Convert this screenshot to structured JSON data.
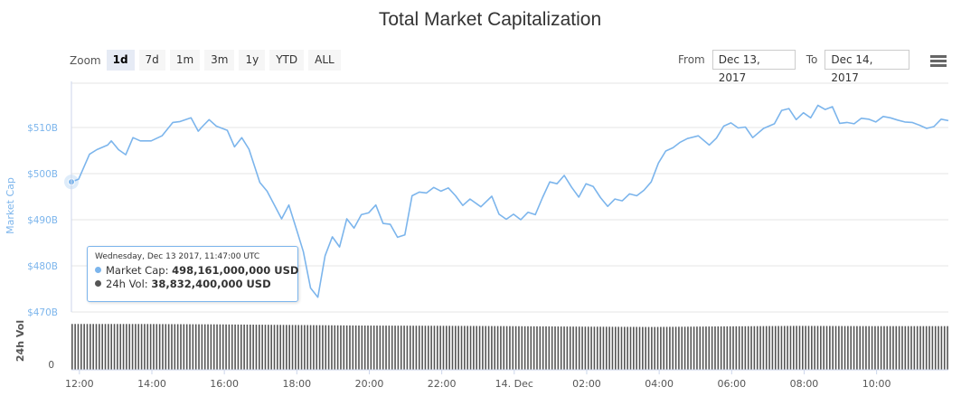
{
  "title": "Total Market Capitalization",
  "toolbar": {
    "zoom_label": "Zoom",
    "zoom_buttons": [
      "1d",
      "7d",
      "1m",
      "3m",
      "1y",
      "YTD",
      "ALL"
    ],
    "active_zoom": "1d",
    "from_label": "From",
    "from_value": "Dec 13, 2017",
    "to_label": "To",
    "to_value": "Dec 14, 2017",
    "menu_icon": "hamburger-menu-icon"
  },
  "colors": {
    "market_cap": "#7cb5ec",
    "volume": "#555555",
    "grid": "#e6e6e6"
  },
  "tooltip": {
    "date": "Wednesday, Dec 13 2017, 11:47:00 UTC",
    "market_cap_label": "Market Cap:",
    "market_cap_value": "498,161,000,000 USD",
    "volume_label": "24h Vol:",
    "volume_value": "38,832,400,000 USD"
  },
  "chart_data": {
    "type": "line",
    "x_unit": "hours since Dec 13 11:47 UTC",
    "x_ticks": [
      {
        "x": 0.22,
        "label": "12:00"
      },
      {
        "x": 2.22,
        "label": "14:00"
      },
      {
        "x": 4.22,
        "label": "16:00"
      },
      {
        "x": 6.22,
        "label": "18:00"
      },
      {
        "x": 8.22,
        "label": "20:00"
      },
      {
        "x": 10.22,
        "label": "22:00"
      },
      {
        "x": 12.22,
        "label": "14. Dec"
      },
      {
        "x": 14.22,
        "label": "02:00"
      },
      {
        "x": 16.22,
        "label": "04:00"
      },
      {
        "x": 18.22,
        "label": "06:00"
      },
      {
        "x": 20.22,
        "label": "08:00"
      },
      {
        "x": 22.22,
        "label": "10:00"
      }
    ],
    "xlim": [
      0,
      24.2
    ],
    "panes": [
      {
        "name": "market_cap",
        "ylabel": "Market Cap",
        "ylim": [
          470,
          520
        ],
        "y_ticks": [
          {
            "v": 470,
            "label": "$470B"
          },
          {
            "v": 480,
            "label": "$480B"
          },
          {
            "v": 490,
            "label": "$490B"
          },
          {
            "v": 500,
            "label": "$500B"
          },
          {
            "v": 510,
            "label": "$510B"
          }
        ],
        "series": [
          {
            "name": "Market Cap",
            "units": "billion USD",
            "x": [
              0,
              0.2,
              0.5,
              0.7,
              1.0,
              1.1,
              1.3,
              1.5,
              1.7,
              1.9,
              2.2,
              2.5,
              2.8,
              3.0,
              3.3,
              3.5,
              3.6,
              3.8,
              4.0,
              4.3,
              4.5,
              4.7,
              4.9,
              5.2,
              5.4,
              5.6,
              5.8,
              6.0,
              6.2,
              6.4,
              6.6,
              6.8,
              7.0,
              7.2,
              7.4,
              7.6,
              7.8,
              8.0,
              8.2,
              8.4,
              8.6,
              8.8,
              9.0,
              9.2,
              9.4,
              9.6,
              9.8,
              10.0,
              10.2,
              10.4,
              10.6,
              10.8,
              11.0,
              11.3,
              11.6,
              11.8,
              12.0,
              12.2,
              12.4,
              12.6,
              12.8,
              13.0,
              13.2,
              13.4,
              13.6,
              13.8,
              14.0,
              14.2,
              14.4,
              14.6,
              14.8,
              15.0,
              15.2,
              15.4,
              15.6,
              15.8,
              16.0,
              16.2,
              16.4,
              16.6,
              16.8,
              17.0,
              17.3,
              17.6,
              17.8,
              18.0,
              18.2,
              18.4,
              18.6,
              18.8,
              19.1,
              19.4,
              19.6,
              19.8,
              20.0,
              20.2,
              20.4,
              20.6,
              20.8,
              21.0,
              21.2,
              21.4,
              21.6,
              21.8,
              22.0,
              22.2,
              22.4,
              22.6,
              22.8,
              23.0,
              23.2,
              23.4,
              23.6,
              23.8,
              24.0,
              24.2
            ],
            "y": [
              498.2,
              498.8,
              504.2,
              505.2,
              506.2,
              507.1,
              505.2,
              504.1,
              507.8,
              507.1,
              507.1,
              508.2,
              511.1,
              511.3,
              512.1,
              509.2,
              510.1,
              511.7,
              510.3,
              509.4,
              505.8,
              507.8,
              505.3,
              498.1,
              496.2,
              493.2,
              490.2,
              493.2,
              488.2,
              483.1,
              475.2,
              473.2,
              482.2,
              486.3,
              484.1,
              490.2,
              488.2,
              491.1,
              491.5,
              493.2,
              489.2,
              489.0,
              486.2,
              486.7,
              495.2,
              496.0,
              495.8,
              497.0,
              496.2,
              496.9,
              495.2,
              493.1,
              494.5,
              492.8,
              495.1,
              491.2,
              490.1,
              491.2,
              490.0,
              491.6,
              491.1,
              494.8,
              498.2,
              497.8,
              499.6,
              497.1,
              494.9,
              497.8,
              497.2,
              494.8,
              492.9,
              494.5,
              494.1,
              495.6,
              495.2,
              496.4,
              498.2,
              502.3,
              504.9,
              505.6,
              506.8,
              507.6,
              508.2,
              506.2,
              507.7,
              510.3,
              511.0,
              509.9,
              510.1,
              507.8,
              509.8,
              510.8,
              513.7,
              514.1,
              511.7,
              513.2,
              512.1,
              514.8,
              513.9,
              514.5,
              510.9,
              511.1,
              510.8,
              512.0,
              511.8,
              511.2,
              512.4,
              512.1,
              511.6,
              511.2,
              511.1,
              510.5,
              509.8,
              510.2,
              511.8,
              511.5
            ]
          }
        ]
      },
      {
        "name": "volume",
        "ylabel": "24h Vol",
        "ylim": [
          0,
          49000000000
        ],
        "y_ticks": [
          {
            "v": 0,
            "label": "0"
          }
        ],
        "series": [
          {
            "name": "24h Vol",
            "type": "column",
            "units": "USD",
            "x": [
              0,
              2,
              4,
              6,
              8,
              10,
              12,
              14,
              16,
              18,
              20,
              22,
              24.2
            ],
            "y": [
              38832400000,
              38800000000,
              38500000000,
              38000000000,
              37500000000,
              37300000000,
              37000000000,
              36600000000,
              36300000000,
              36800000000,
              37200000000,
              37000000000,
              37000000000
            ]
          }
        ]
      }
    ]
  }
}
